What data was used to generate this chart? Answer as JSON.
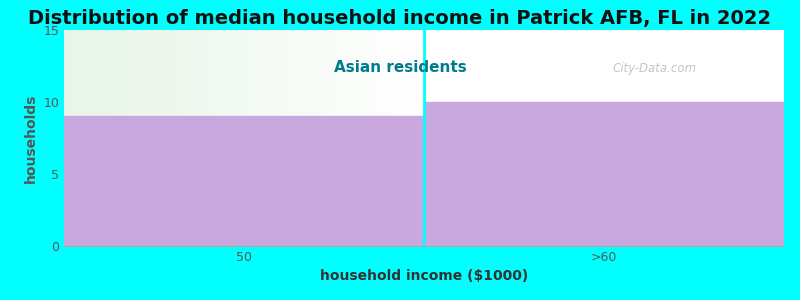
{
  "title": "Distribution of median household income in Patrick AFB, FL in 2022",
  "subtitle": "Asian residents",
  "categories": [
    "50",
    ">60"
  ],
  "values": [
    9,
    10
  ],
  "bar_color": "#C9A8E0",
  "background_color": "#00FFFF",
  "plot_bg_left": "#E8F5E8",
  "plot_bg_right": "#FFFFFF",
  "xlabel": "household income ($1000)",
  "ylabel": "households",
  "ylim": [
    0,
    15
  ],
  "yticks": [
    0,
    5,
    10,
    15
  ],
  "title_fontsize": 14,
  "subtitle_fontsize": 11,
  "subtitle_color": "#007B8A",
  "axis_label_fontsize": 10,
  "tick_label_fontsize": 9,
  "watermark": "City-Data.com",
  "divider_color": "#00FFFF"
}
